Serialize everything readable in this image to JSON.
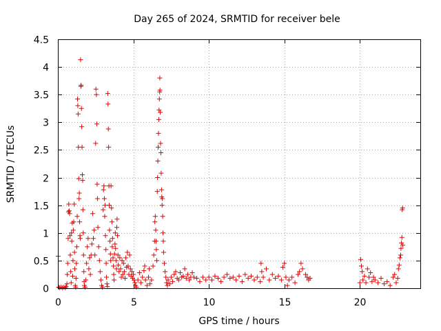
{
  "chart_data": {
    "type": "scatter",
    "title": "Day 265 of 2024, SRMTID for receiver bele",
    "xlabel": "GPS time / hours",
    "ylabel": "SRMTID / TECUs",
    "xlim": [
      0,
      24
    ],
    "ylim": [
      0,
      4.5
    ],
    "xticks": [
      0,
      5,
      10,
      15,
      20
    ],
    "xtick_labels": [
      "0",
      "5",
      "10",
      "15",
      "20"
    ],
    "yticks": [
      0,
      0.5,
      1,
      1.5,
      2,
      2.5,
      3,
      3.5,
      4,
      4.5
    ],
    "ytick_labels": [
      "0",
      "0.5",
      "1",
      "1.5",
      "2",
      "2.5",
      "3",
      "3.5",
      "4",
      "4.5"
    ],
    "grid": true,
    "marker": "+",
    "color": "#e60000",
    "series": [
      {
        "name": "SRMTID",
        "points": [
          [
            0.02,
            0.58
          ],
          [
            0.05,
            0.02
          ],
          [
            0.1,
            0.01
          ],
          [
            0.2,
            0.02
          ],
          [
            0.3,
            0.01
          ],
          [
            0.4,
            0.02
          ],
          [
            0.5,
            0.01
          ],
          [
            0.55,
            0.03
          ],
          [
            0.6,
            0.08
          ],
          [
            0.62,
            0.25
          ],
          [
            0.65,
            0.45
          ],
          [
            0.68,
            0.9
          ],
          [
            0.7,
            1.38
          ],
          [
            0.72,
            1.52
          ],
          [
            0.75,
            1.4
          ],
          [
            0.78,
            1.35
          ],
          [
            0.8,
            0.95
          ],
          [
            0.82,
            0.6
          ],
          [
            0.85,
            0.3
          ],
          [
            0.88,
            0.1
          ],
          [
            0.9,
            1.0
          ],
          [
            0.92,
            0.85
          ],
          [
            0.95,
            1.18
          ],
          [
            0.98,
            0.22
          ],
          [
            1.0,
            0.5
          ],
          [
            1.02,
            1.05
          ],
          [
            1.05,
            1.2
          ],
          [
            1.08,
            1.52
          ],
          [
            1.1,
            0.65
          ],
          [
            1.12,
            0.35
          ],
          [
            1.15,
            0.05
          ],
          [
            1.18,
            0.02
          ],
          [
            1.2,
            0.18
          ],
          [
            1.22,
            0.45
          ],
          [
            1.25,
            0.75
          ],
          [
            1.28,
            1.3
          ],
          [
            1.3,
            3.42
          ],
          [
            1.32,
            3.3
          ],
          [
            1.34,
            3.15
          ],
          [
            1.36,
            2.55
          ],
          [
            1.38,
            1.98
          ],
          [
            1.4,
            1.62
          ],
          [
            1.42,
            1.72
          ],
          [
            1.44,
            1.2
          ],
          [
            1.46,
            0.95
          ],
          [
            1.48,
            0.9
          ],
          [
            1.5,
            4.13
          ],
          [
            1.52,
            3.65
          ],
          [
            1.54,
            3.67
          ],
          [
            1.56,
            3.25
          ],
          [
            1.58,
            2.92
          ],
          [
            1.6,
            2.55
          ],
          [
            1.62,
            2.05
          ],
          [
            1.64,
            1.95
          ],
          [
            1.66,
            1.42
          ],
          [
            1.68,
            1.0
          ],
          [
            1.7,
            0.6
          ],
          [
            1.72,
            0.3
          ],
          [
            1.74,
            0.12
          ],
          [
            1.76,
            0.05
          ],
          [
            1.8,
            0.02
          ],
          [
            1.85,
            0.15
          ],
          [
            1.9,
            0.45
          ],
          [
            1.95,
            0.75
          ],
          [
            2.0,
            0.9
          ],
          [
            2.05,
            0.35
          ],
          [
            2.1,
            0.55
          ],
          [
            2.15,
            0.25
          ],
          [
            2.2,
            0.6
          ],
          [
            2.25,
            0.8
          ],
          [
            2.3,
            1.35
          ],
          [
            2.35,
            0.9
          ],
          [
            2.4,
            1.05
          ],
          [
            2.45,
            0.6
          ],
          [
            2.5,
            2.62
          ],
          [
            2.52,
            3.6
          ],
          [
            2.55,
            3.5
          ],
          [
            2.58,
            2.97
          ],
          [
            2.6,
            1.88
          ],
          [
            2.62,
            1.62
          ],
          [
            2.65,
            1.1
          ],
          [
            2.7,
            0.75
          ],
          [
            2.75,
            0.5
          ],
          [
            2.8,
            0.3
          ],
          [
            2.85,
            0.15
          ],
          [
            2.9,
            0.05
          ],
          [
            2.95,
            0.02
          ],
          [
            3.0,
            1.42
          ],
          [
            3.02,
            1.78
          ],
          [
            3.05,
            1.85
          ],
          [
            3.08,
            1.62
          ],
          [
            3.1,
            1.3
          ],
          [
            3.12,
            1.5
          ],
          [
            3.15,
            0.95
          ],
          [
            3.18,
            0.7
          ],
          [
            3.2,
            0.45
          ],
          [
            3.22,
            0.2
          ],
          [
            3.25,
            0.08
          ],
          [
            3.28,
            0.03
          ],
          [
            3.3,
            3.52
          ],
          [
            3.32,
            3.33
          ],
          [
            3.34,
            2.88
          ],
          [
            3.36,
            2.55
          ],
          [
            3.38,
            1.85
          ],
          [
            3.4,
            1.5
          ],
          [
            3.42,
            1.05
          ],
          [
            3.45,
            0.85
          ],
          [
            3.48,
            0.62
          ],
          [
            3.5,
            0.5
          ],
          [
            3.52,
            1.85
          ],
          [
            3.55,
            1.45
          ],
          [
            3.58,
            1.2
          ],
          [
            3.6,
            0.75
          ],
          [
            3.62,
            0.9
          ],
          [
            3.65,
            0.55
          ],
          [
            3.68,
            0.4
          ],
          [
            3.7,
            0.25
          ],
          [
            3.72,
            0.15
          ],
          [
            3.75,
            0.62
          ],
          [
            3.78,
            0.8
          ],
          [
            3.8,
            1.0
          ],
          [
            3.82,
            0.72
          ],
          [
            3.85,
            0.5
          ],
          [
            3.88,
            0.35
          ],
          [
            3.9,
            1.1
          ],
          [
            3.92,
            1.25
          ],
          [
            3.95,
            0.95
          ],
          [
            3.98,
            0.6
          ],
          [
            4.0,
            0.42
          ],
          [
            4.05,
            0.3
          ],
          [
            4.1,
            0.55
          ],
          [
            4.15,
            0.35
          ],
          [
            4.2,
            0.2
          ],
          [
            4.25,
            0.5
          ],
          [
            4.3,
            0.25
          ],
          [
            4.35,
            0.45
          ],
          [
            4.4,
            0.3
          ],
          [
            4.45,
            0.18
          ],
          [
            4.5,
            0.55
          ],
          [
            4.55,
            0.38
          ],
          [
            4.6,
            0.65
          ],
          [
            4.65,
            0.4
          ],
          [
            4.7,
            0.25
          ],
          [
            4.75,
            0.6
          ],
          [
            4.8,
            0.35
          ],
          [
            4.85,
            0.22
          ],
          [
            4.9,
            0.3
          ],
          [
            4.95,
            0.18
          ],
          [
            5.0,
            0.25
          ],
          [
            5.05,
            0.15
          ],
          [
            5.1,
            0.1
          ],
          [
            5.15,
            0.05
          ],
          [
            5.2,
            0.02
          ],
          [
            5.3,
            0.15
          ],
          [
            5.4,
            0.28
          ],
          [
            5.5,
            0.1
          ],
          [
            5.6,
            0.2
          ],
          [
            5.7,
            0.32
          ],
          [
            5.75,
            0.4
          ],
          [
            5.8,
            0.15
          ],
          [
            5.9,
            0.05
          ],
          [
            6.0,
            0.2
          ],
          [
            6.05,
            0.35
          ],
          [
            6.1,
            0.08
          ],
          [
            6.2,
            0.15
          ],
          [
            6.3,
            0.4
          ],
          [
            6.35,
            0.6
          ],
          [
            6.4,
            0.85
          ],
          [
            6.42,
            1.2
          ],
          [
            6.45,
            1.3
          ],
          [
            6.48,
            1.05
          ],
          [
            6.5,
            0.85
          ],
          [
            6.52,
            0.7
          ],
          [
            6.55,
            0.5
          ],
          [
            6.58,
            1.75
          ],
          [
            6.6,
            2.0
          ],
          [
            6.62,
            2.3
          ],
          [
            6.64,
            2.55
          ],
          [
            6.66,
            2.8
          ],
          [
            6.68,
            3.05
          ],
          [
            6.7,
            3.22
          ],
          [
            6.72,
            3.42
          ],
          [
            6.74,
            3.55
          ],
          [
            6.75,
            3.8
          ],
          [
            6.76,
            3.58
          ],
          [
            6.78,
            3.18
          ],
          [
            6.8,
            2.62
          ],
          [
            6.82,
            2.45
          ],
          [
            6.84,
            2.08
          ],
          [
            6.86,
            1.78
          ],
          [
            6.88,
            1.65
          ],
          [
            6.9,
            1.5
          ],
          [
            6.92,
            1.62
          ],
          [
            6.94,
            1.3
          ],
          [
            6.96,
            1.0
          ],
          [
            6.98,
            0.85
          ],
          [
            7.0,
            0.65
          ],
          [
            7.05,
            0.45
          ],
          [
            7.1,
            0.3
          ],
          [
            7.15,
            0.2
          ],
          [
            7.2,
            0.1
          ],
          [
            7.25,
            0.05
          ],
          [
            7.3,
            0.15
          ],
          [
            7.4,
            0.08
          ],
          [
            7.5,
            0.2
          ],
          [
            7.6,
            0.12
          ],
          [
            7.7,
            0.25
          ],
          [
            7.8,
            0.3
          ],
          [
            7.9,
            0.18
          ],
          [
            8.0,
            0.15
          ],
          [
            8.1,
            0.28
          ],
          [
            8.2,
            0.2
          ],
          [
            8.3,
            0.22
          ],
          [
            8.4,
            0.35
          ],
          [
            8.5,
            0.18
          ],
          [
            8.6,
            0.25
          ],
          [
            8.7,
            0.15
          ],
          [
            8.8,
            0.2
          ],
          [
            8.9,
            0.28
          ],
          [
            9.0,
            0.2
          ],
          [
            9.2,
            0.18
          ],
          [
            9.4,
            0.12
          ],
          [
            9.6,
            0.2
          ],
          [
            9.8,
            0.15
          ],
          [
            10.0,
            0.2
          ],
          [
            10.2,
            0.15
          ],
          [
            10.4,
            0.22
          ],
          [
            10.6,
            0.18
          ],
          [
            10.8,
            0.12
          ],
          [
            11.0,
            0.2
          ],
          [
            11.2,
            0.25
          ],
          [
            11.4,
            0.18
          ],
          [
            11.6,
            0.2
          ],
          [
            11.8,
            0.15
          ],
          [
            12.0,
            0.22
          ],
          [
            12.2,
            0.12
          ],
          [
            12.4,
            0.25
          ],
          [
            12.6,
            0.18
          ],
          [
            12.8,
            0.22
          ],
          [
            13.0,
            0.15
          ],
          [
            13.2,
            0.2
          ],
          [
            13.4,
            0.12
          ],
          [
            13.45,
            0.45
          ],
          [
            13.5,
            0.3
          ],
          [
            13.6,
            0.2
          ],
          [
            13.8,
            0.35
          ],
          [
            14.0,
            0.15
          ],
          [
            14.2,
            0.25
          ],
          [
            14.4,
            0.18
          ],
          [
            14.6,
            0.22
          ],
          [
            14.8,
            0.15
          ],
          [
            14.9,
            0.38
          ],
          [
            15.0,
            0.45
          ],
          [
            15.1,
            0.2
          ],
          [
            15.2,
            0.05
          ],
          [
            15.3,
            0.15
          ],
          [
            15.5,
            0.2
          ],
          [
            15.7,
            0.1
          ],
          [
            15.9,
            0.25
          ],
          [
            16.0,
            0.3
          ],
          [
            16.1,
            0.45
          ],
          [
            16.2,
            0.35
          ],
          [
            16.4,
            0.25
          ],
          [
            16.5,
            0.2
          ],
          [
            16.6,
            0.15
          ],
          [
            16.7,
            0.18
          ],
          [
            20.0,
            0.1
          ],
          [
            20.05,
            0.52
          ],
          [
            20.1,
            0.4
          ],
          [
            20.15,
            0.3
          ],
          [
            20.2,
            0.15
          ],
          [
            20.3,
            0.22
          ],
          [
            20.4,
            0.1
          ],
          [
            20.5,
            0.35
          ],
          [
            20.6,
            0.2
          ],
          [
            20.7,
            0.28
          ],
          [
            20.8,
            0.12
          ],
          [
            20.9,
            0.2
          ],
          [
            21.0,
            0.15
          ],
          [
            21.2,
            0.1
          ],
          [
            21.4,
            0.18
          ],
          [
            21.6,
            0.08
          ],
          [
            21.8,
            0.12
          ],
          [
            22.0,
            0.05
          ],
          [
            22.2,
            0.2
          ],
          [
            22.3,
            0.25
          ],
          [
            22.4,
            0.1
          ],
          [
            22.5,
            0.18
          ],
          [
            22.55,
            0.35
          ],
          [
            22.6,
            0.42
          ],
          [
            22.65,
            0.55
          ],
          [
            22.7,
            0.6
          ],
          [
            22.72,
            0.72
          ],
          [
            22.75,
            0.82
          ],
          [
            22.78,
            0.92
          ],
          [
            22.8,
            1.42
          ],
          [
            22.82,
            1.45
          ],
          [
            22.84,
            0.78
          ]
        ]
      }
    ]
  }
}
